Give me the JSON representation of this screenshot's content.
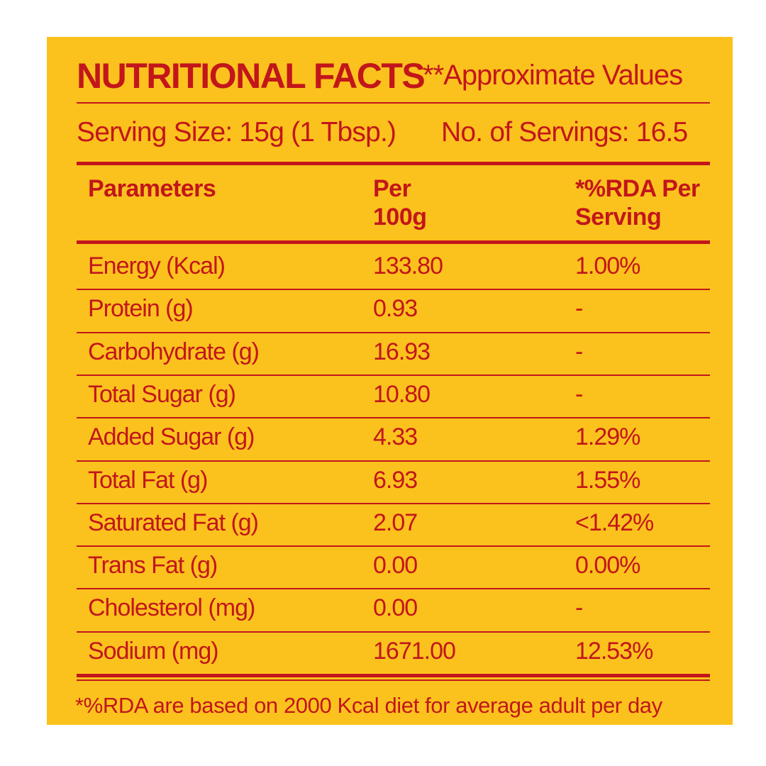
{
  "header": {
    "title": "NUTRITIONAL FACTS",
    "note": "**Approximate Values",
    "serving_size": "Serving Size: 15g (1 Tbsp.)",
    "servings": "No. of Servings: 16.5"
  },
  "table": {
    "columns": [
      "Parameters",
      "Per 100g",
      "*%RDA Per Serving"
    ],
    "rows": [
      [
        "Energy (Kcal)",
        "133.80",
        "1.00%"
      ],
      [
        "Protein (g)",
        "0.93",
        "-"
      ],
      [
        "Carbohydrate (g)",
        "16.93",
        "-"
      ],
      [
        "Total Sugar (g)",
        "10.80",
        "-"
      ],
      [
        "Added Sugar (g)",
        "4.33",
        "1.29%"
      ],
      [
        "Total Fat (g)",
        "6.93",
        "1.55%"
      ],
      [
        "Saturated Fat (g)",
        "2.07",
        "<1.42%"
      ],
      [
        "Trans Fat (g)",
        "0.00",
        "0.00%"
      ],
      [
        "Cholesterol (mg)",
        "0.00",
        "-"
      ],
      [
        "Sodium (mg)",
        "1671.00",
        "12.53%"
      ]
    ]
  },
  "footer": "*%RDA are based on 2000 Kcal diet for average adult per day"
}
